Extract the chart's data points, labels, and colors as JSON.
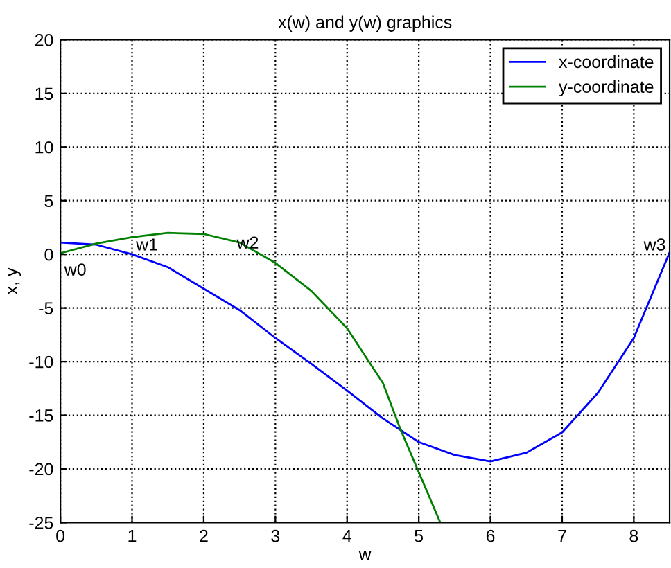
{
  "chart_data": {
    "type": "line",
    "title": "x(w) and y(w) graphics",
    "xlabel": "w",
    "ylabel": "x, y",
    "xlim": [
      0,
      8.5
    ],
    "xticks": [
      0,
      1,
      2,
      3,
      4,
      5,
      6,
      7,
      8
    ],
    "ylim": [
      -25,
      20
    ],
    "yticks": [
      -25,
      -20,
      -15,
      -10,
      -5,
      0,
      5,
      10,
      15,
      20
    ],
    "grid": true,
    "legend": "top right",
    "line_style": "solid",
    "series": [
      {
        "name": "x-coordinate",
        "color": "#0000ff",
        "x": [
          0,
          0.5,
          1,
          1.5,
          2,
          2.5,
          3,
          3.5,
          4,
          4.5,
          5,
          5.5,
          6,
          6.5,
          7,
          7.5,
          8,
          8.5
        ],
        "values": [
          1.1,
          0.9,
          0,
          -1.2,
          -3.2,
          -5.2,
          -7.8,
          -10.2,
          -12.7,
          -15.3,
          -17.5,
          -18.7,
          -19.3,
          -18.5,
          -16.6,
          -12.9,
          -7.8,
          0.2
        ]
      },
      {
        "name": "y-coordinate",
        "color": "#008000",
        "x": [
          0,
          0.5,
          1,
          1.5,
          2,
          2.5,
          3,
          3.5,
          4,
          4.5,
          4.75,
          5,
          5.3
        ],
        "values": [
          0.1,
          1,
          1.6,
          2.0,
          1.9,
          1.1,
          -0.8,
          -3.4,
          -6.9,
          -12,
          -16.4,
          -20.3,
          -25
        ]
      }
    ],
    "annotations": [
      {
        "text": "w0",
        "x": 0,
        "y": 0
      },
      {
        "text": "w1",
        "x": 1,
        "y": 0
      },
      {
        "text": "w2",
        "x": 2.85,
        "y": 0
      },
      {
        "text": "w3",
        "x": 8.5,
        "y": 0
      }
    ]
  }
}
